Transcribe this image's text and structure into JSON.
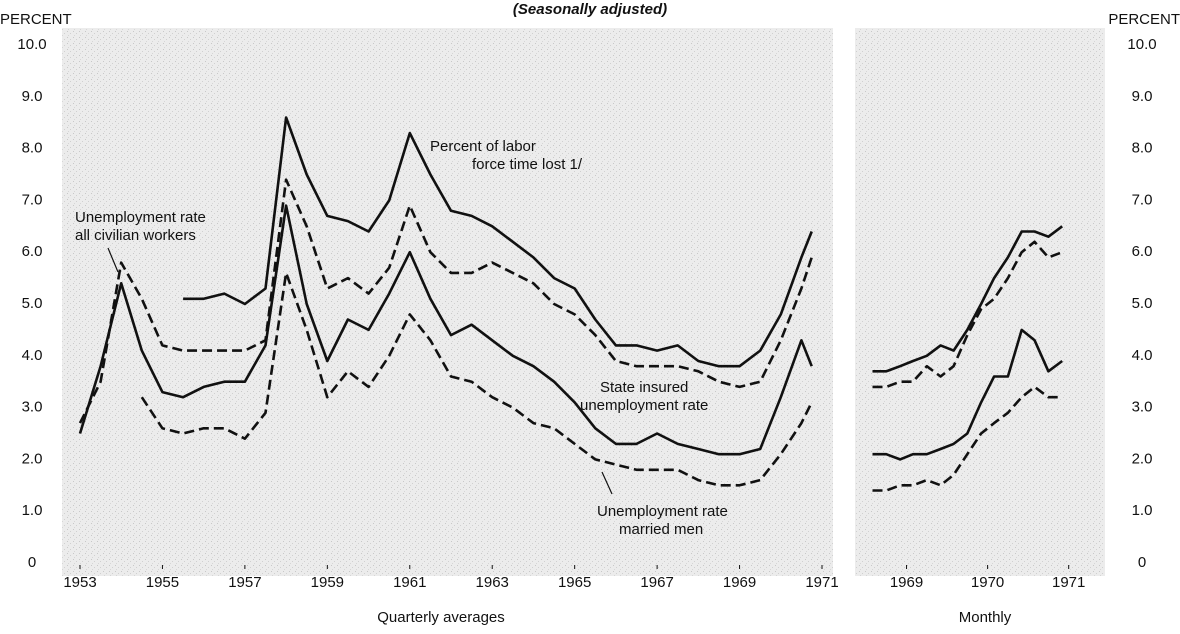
{
  "chart_data": [
    {
      "type": "line",
      "title": "(Seasonally adjusted)",
      "y_axis_label": "PERCENT",
      "x_axis_label": "Quarterly averages",
      "xlim": [
        1953,
        1971
      ],
      "xticks": [
        1953,
        1955,
        1957,
        1959,
        1961,
        1963,
        1965,
        1967,
        1969,
        1971
      ],
      "ylim": [
        0,
        10
      ],
      "yticks": [
        0,
        {
          "value": 1,
          "label": "1.0"
        },
        {
          "value": 2,
          "label": "2.0"
        },
        {
          "value": 3,
          "label": "3.0"
        },
        {
          "value": 4,
          "label": "4.0"
        },
        {
          "value": 5,
          "label": "5.0"
        },
        {
          "value": 6,
          "label": "6.0"
        },
        {
          "value": 7,
          "label": "7.0"
        },
        {
          "value": 8,
          "label": "8.0"
        },
        {
          "value": 9,
          "label": "9.0"
        },
        {
          "value": 10,
          "label": "10.0"
        }
      ],
      "annotations": [
        {
          "lines": [
            "Percent of labor",
            "force time lost 1/"
          ]
        },
        {
          "lines": [
            "Unemployment rate",
            "all civilian workers"
          ]
        },
        {
          "lines": [
            "State insured",
            "unemployment rate"
          ]
        },
        {
          "lines": [
            "Unemployment rate",
            "married men"
          ]
        }
      ],
      "x": [
        1953,
        1953.5,
        1954,
        1954.5,
        1955,
        1955.5,
        1956,
        1956.5,
        1957,
        1957.5,
        1958,
        1958.5,
        1959,
        1959.5,
        1960,
        1960.5,
        1961,
        1961.5,
        1962,
        1962.5,
        1963,
        1963.5,
        1964,
        1964.5,
        1965,
        1965.5,
        1966,
        1966.5,
        1967,
        1967.5,
        1968,
        1968.5,
        1969,
        1969.5,
        1970,
        1970.5,
        1970.75
      ],
      "series": [
        {
          "style": "solid",
          "color": "#111111",
          "values": [
            null,
            null,
            null,
            null,
            null,
            5.1,
            5.1,
            5.2,
            5.0,
            5.3,
            8.6,
            7.5,
            6.7,
            6.6,
            6.4,
            7.0,
            8.3,
            7.5,
            6.8,
            6.7,
            6.5,
            6.2,
            5.9,
            5.5,
            5.3,
            4.7,
            4.2,
            4.2,
            4.1,
            4.2,
            3.9,
            3.8,
            3.8,
            4.1,
            4.8,
            5.9,
            6.4
          ]
        },
        {
          "style": "dashed",
          "color": "#111111",
          "values": [
            2.7,
            3.5,
            5.8,
            5.1,
            4.2,
            4.1,
            4.1,
            4.1,
            4.1,
            4.3,
            7.4,
            6.5,
            5.3,
            5.5,
            5.2,
            5.7,
            6.9,
            6.0,
            5.6,
            5.6,
            5.8,
            5.6,
            5.4,
            5.0,
            4.8,
            4.4,
            3.9,
            3.8,
            3.8,
            3.8,
            3.7,
            3.5,
            3.4,
            3.5,
            4.3,
            5.3,
            5.9
          ]
        },
        {
          "style": "solid",
          "color": "#111111",
          "values": [
            2.5,
            3.8,
            5.4,
            4.1,
            3.3,
            3.2,
            3.4,
            3.5,
            3.5,
            4.2,
            6.9,
            5.0,
            3.9,
            4.7,
            4.5,
            5.2,
            6.0,
            5.1,
            4.4,
            4.6,
            4.3,
            4.0,
            3.8,
            3.5,
            3.1,
            2.6,
            2.3,
            2.3,
            2.5,
            2.3,
            2.2,
            2.1,
            2.1,
            2.2,
            3.2,
            4.3,
            3.8
          ]
        },
        {
          "style": "dashed",
          "color": "#111111",
          "values": [
            null,
            null,
            null,
            3.2,
            2.6,
            2.5,
            2.6,
            2.6,
            2.4,
            2.9,
            5.6,
            4.5,
            3.2,
            3.7,
            3.4,
            4.0,
            4.8,
            4.3,
            3.6,
            3.5,
            3.2,
            3.0,
            2.7,
            2.6,
            2.3,
            2.0,
            1.9,
            1.8,
            1.8,
            1.8,
            1.6,
            1.5,
            1.5,
            1.6,
            2.1,
            2.7,
            3.1
          ]
        }
      ]
    },
    {
      "type": "line",
      "y_axis_label": "PERCENT",
      "x_axis_label": "Monthly",
      "xlim": [
        1968.5,
        1971.3
      ],
      "xticks": [
        1969,
        1970,
        1971
      ],
      "ylim": [
        0,
        10
      ],
      "yticks": [
        0,
        {
          "value": 1,
          "label": "1.0"
        },
        {
          "value": 2,
          "label": "2.0"
        },
        {
          "value": 3,
          "label": "3.0"
        },
        {
          "value": 4,
          "label": "4.0"
        },
        {
          "value": 5,
          "label": "5.0"
        },
        {
          "value": 6,
          "label": "6.0"
        },
        {
          "value": 7,
          "label": "7.0"
        },
        {
          "value": 8,
          "label": "8.0"
        },
        {
          "value": 9,
          "label": "9.0"
        },
        {
          "value": 10,
          "label": "10.0"
        }
      ],
      "x": [
        1968.58,
        1968.75,
        1968.92,
        1969.08,
        1969.25,
        1969.42,
        1969.58,
        1969.75,
        1969.92,
        1970.08,
        1970.25,
        1970.42,
        1970.58,
        1970.75,
        1970.92
      ],
      "series": [
        {
          "style": "solid",
          "color": "#111111",
          "values": [
            3.7,
            3.7,
            3.8,
            3.9,
            4.0,
            4.2,
            4.1,
            4.5,
            5.0,
            5.5,
            5.9,
            6.4,
            6.4,
            6.3,
            6.5
          ]
        },
        {
          "style": "dashed",
          "color": "#111111",
          "values": [
            3.4,
            3.4,
            3.5,
            3.5,
            3.8,
            3.6,
            3.8,
            4.4,
            4.9,
            5.1,
            5.5,
            6.0,
            6.2,
            5.9,
            6.0
          ]
        },
        {
          "style": "solid",
          "color": "#111111",
          "values": [
            2.1,
            2.1,
            2.0,
            2.1,
            2.1,
            2.2,
            2.3,
            2.5,
            3.1,
            3.6,
            3.6,
            4.5,
            4.3,
            3.7,
            3.9
          ]
        },
        {
          "style": "dashed",
          "color": "#111111",
          "values": [
            1.4,
            1.4,
            1.5,
            1.5,
            1.6,
            1.5,
            1.7,
            2.1,
            2.5,
            2.7,
            2.9,
            3.2,
            3.4,
            3.2,
            3.2
          ]
        }
      ]
    }
  ]
}
